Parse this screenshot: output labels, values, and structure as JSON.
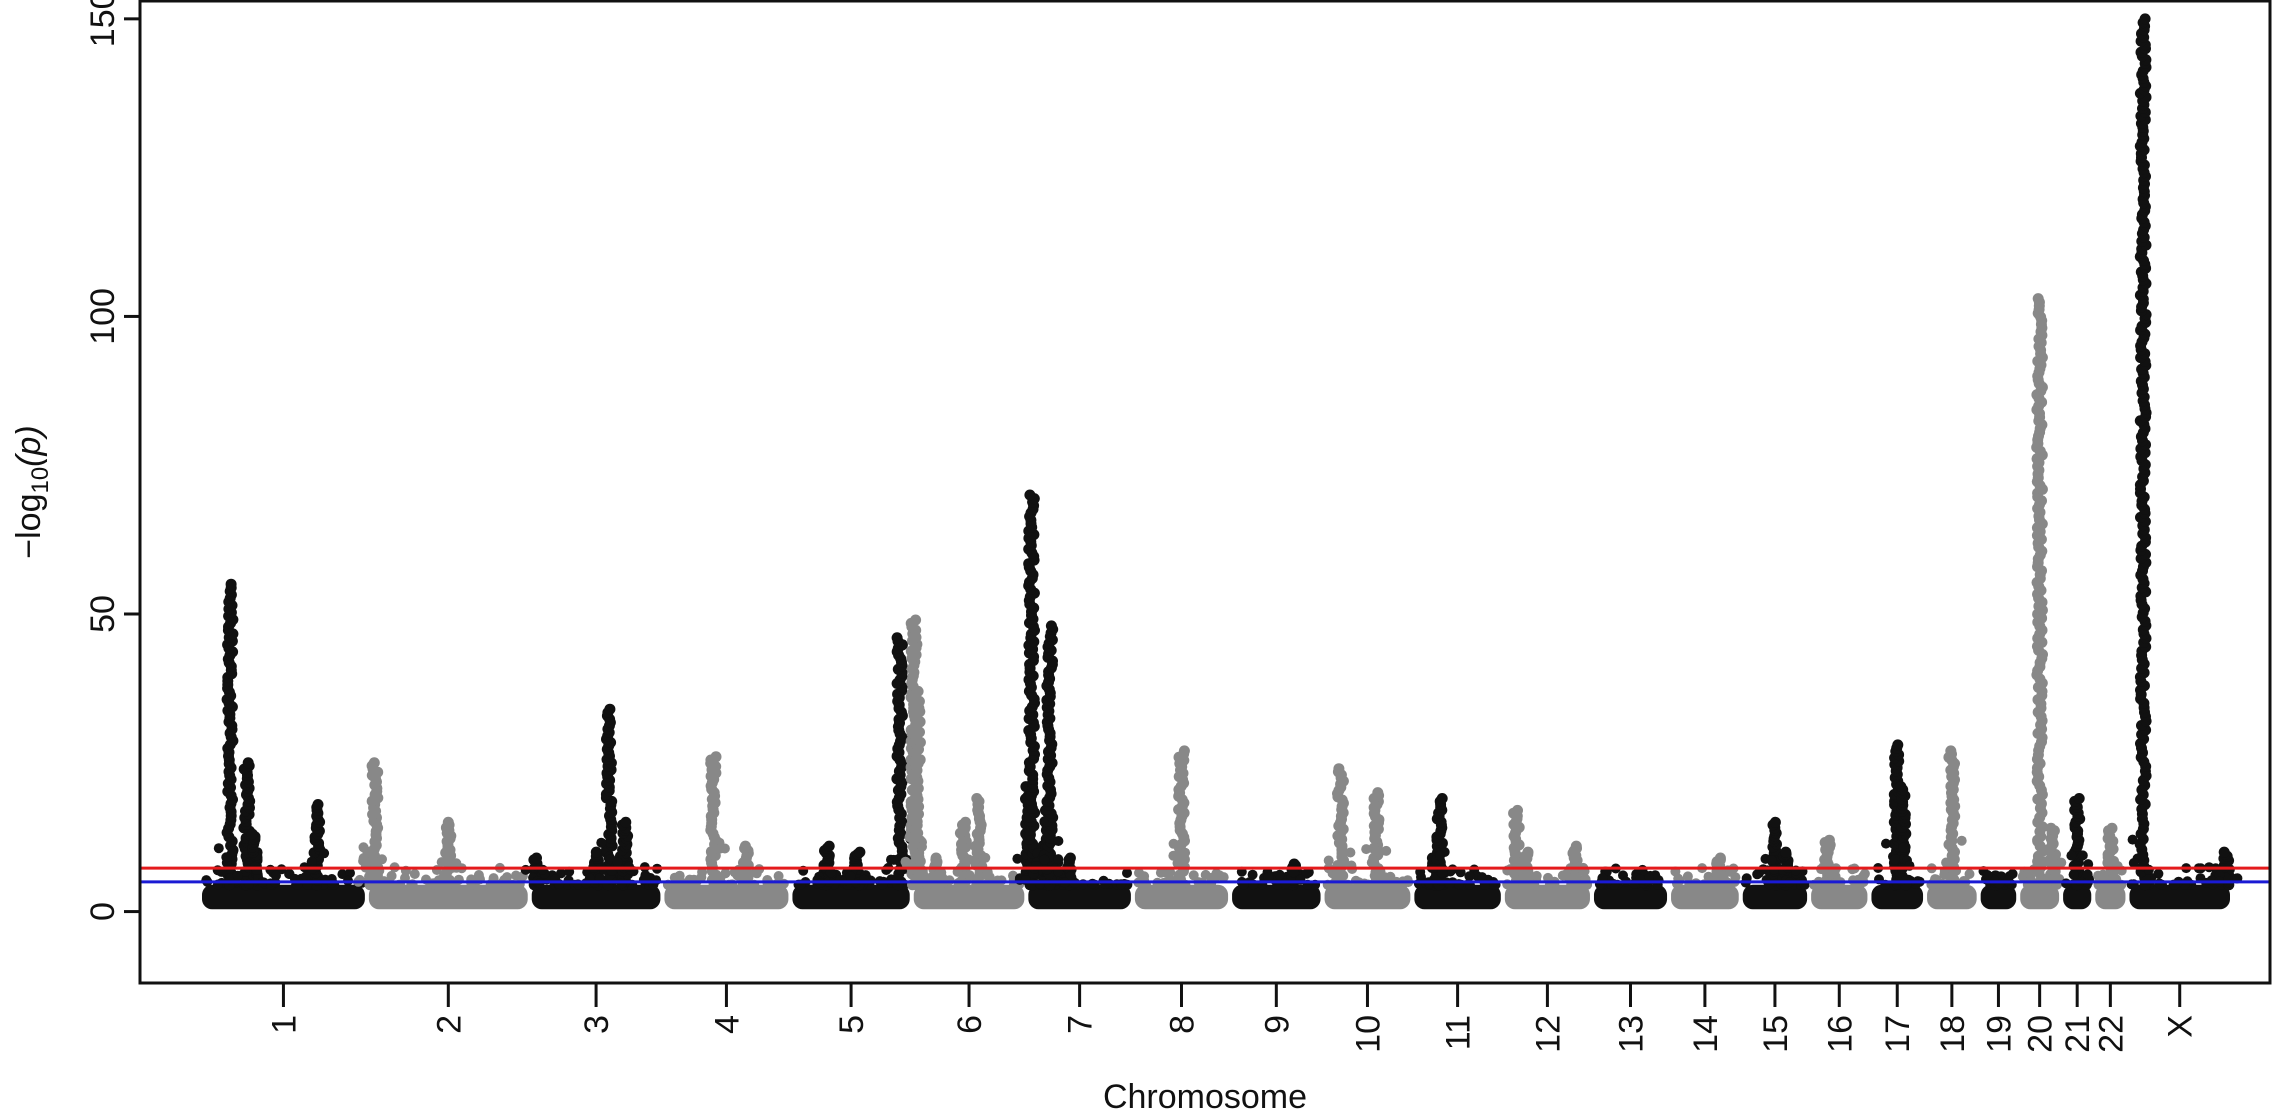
{
  "chart_data": {
    "type": "scatter",
    "title": "",
    "xlabel": "Chromosome",
    "ylabel": "−log10(p)",
    "ylabel_parts": {
      "prefix": "−log",
      "sub": "10",
      "suffix": "(p)"
    },
    "ylim": [
      -12,
      153
    ],
    "yticks": [
      0,
      50,
      100,
      150
    ],
    "grid": false,
    "legend": "none",
    "thresholds": [
      {
        "value": 7.3,
        "color": "#e41a1c"
      },
      {
        "value": 5.0,
        "color": "#1a1ad4"
      }
    ],
    "colors": {
      "odd": "#111111",
      "even": "#888888"
    },
    "xlim": [
      0,
      2893
    ],
    "chromosomes": [
      {
        "label": "1",
        "start": 0,
        "end": 249,
        "base_max": 4.5,
        "peaks": [
          {
            "pos": 0.18,
            "height": 55
          },
          {
            "pos": 0.28,
            "height": 25
          },
          {
            "pos": 0.33,
            "height": 13
          },
          {
            "pos": 0.7,
            "height": 18
          }
        ]
      },
      {
        "label": "2",
        "start": 249,
        "end": 492,
        "base_max": 4.5,
        "peaks": [
          {
            "pos": 0.02,
            "height": 10
          },
          {
            "pos": 0.05,
            "height": 25
          },
          {
            "pos": 0.5,
            "height": 15
          }
        ]
      },
      {
        "label": "3",
        "start": 492,
        "end": 690,
        "base_max": 4.5,
        "peaks": [
          {
            "pos": 0.05,
            "height": 9
          },
          {
            "pos": 0.5,
            "height": 10
          },
          {
            "pos": 0.6,
            "height": 34
          },
          {
            "pos": 0.72,
            "height": 15
          }
        ]
      },
      {
        "label": "4",
        "start": 690,
        "end": 881,
        "base_max": 4.5,
        "peaks": [
          {
            "pos": 0.4,
            "height": 26
          },
          {
            "pos": 0.65,
            "height": 11
          }
        ]
      },
      {
        "label": "5",
        "start": 881,
        "end": 1062,
        "base_max": 4.5,
        "peaks": [
          {
            "pos": 0.3,
            "height": 11
          },
          {
            "pos": 0.55,
            "height": 10
          },
          {
            "pos": 0.9,
            "height": 46
          }
        ]
      },
      {
        "label": "6",
        "start": 1062,
        "end": 1233,
        "base_max": 4.5,
        "peaks": [
          {
            "pos": 0.02,
            "height": 49
          },
          {
            "pos": 0.05,
            "height": 37
          },
          {
            "pos": 0.2,
            "height": 9
          },
          {
            "pos": 0.45,
            "height": 15
          },
          {
            "pos": 0.58,
            "height": 19
          }
        ]
      },
      {
        "label": "7",
        "start": 1233,
        "end": 1392,
        "base_max": 4.5,
        "peaks": [
          {
            "pos": 0.02,
            "height": 21
          },
          {
            "pos": 0.05,
            "height": 70
          },
          {
            "pos": 0.2,
            "height": 17
          },
          {
            "pos": 0.22,
            "height": 48
          },
          {
            "pos": 0.4,
            "height": 9
          }
        ]
      },
      {
        "label": "8",
        "start": 1392,
        "end": 1537,
        "base_max": 4.5,
        "peaks": [
          {
            "pos": 0.5,
            "height": 27
          }
        ]
      },
      {
        "label": "9",
        "start": 1537,
        "end": 1675,
        "base_max": 4.5,
        "peaks": [
          {
            "pos": 0.7,
            "height": 8
          }
        ]
      },
      {
        "label": "10",
        "start": 1675,
        "end": 1809,
        "base_max": 4.5,
        "peaks": [
          {
            "pos": 0.2,
            "height": 24
          },
          {
            "pos": 0.6,
            "height": 20
          }
        ]
      },
      {
        "label": "11",
        "start": 1809,
        "end": 1944,
        "base_max": 4.5,
        "peaks": [
          {
            "pos": 0.25,
            "height": 9
          },
          {
            "pos": 0.3,
            "height": 19
          }
        ]
      },
      {
        "label": "12",
        "start": 1944,
        "end": 2077,
        "base_max": 4.5,
        "peaks": [
          {
            "pos": 0.15,
            "height": 17
          },
          {
            "pos": 0.25,
            "height": 10
          },
          {
            "pos": 0.8,
            "height": 11
          }
        ]
      },
      {
        "label": "13",
        "start": 2077,
        "end": 2192,
        "base_max": 4.5,
        "peaks": [
          {
            "pos": 0.7,
            "height": 6
          }
        ]
      },
      {
        "label": "14",
        "start": 2192,
        "end": 2299,
        "base_max": 4.5,
        "peaks": [
          {
            "pos": 0.7,
            "height": 9
          }
        ]
      },
      {
        "label": "15",
        "start": 2299,
        "end": 2401,
        "base_max": 4.5,
        "peaks": [
          {
            "pos": 0.5,
            "height": 15
          },
          {
            "pos": 0.65,
            "height": 10
          }
        ]
      },
      {
        "label": "16",
        "start": 2401,
        "end": 2491,
        "base_max": 4.5,
        "peaks": [
          {
            "pos": 0.3,
            "height": 12
          }
        ]
      },
      {
        "label": "17",
        "start": 2491,
        "end": 2574,
        "base_max": 4.5,
        "peaks": [
          {
            "pos": 0.5,
            "height": 28
          },
          {
            "pos": 0.6,
            "height": 21
          }
        ]
      },
      {
        "label": "18",
        "start": 2574,
        "end": 2654,
        "base_max": 4.5,
        "peaks": [
          {
            "pos": 0.5,
            "height": 27
          }
        ]
      },
      {
        "label": "19",
        "start": 2654,
        "end": 2713,
        "base_max": 4.5,
        "peaks": [
          {
            "pos": 0.5,
            "height": 6
          }
        ]
      },
      {
        "label": "20",
        "start": 2713,
        "end": 2777,
        "base_max": 4.5,
        "peaks": [
          {
            "pos": 0.5,
            "height": 103
          },
          {
            "pos": 0.8,
            "height": 14
          }
        ]
      },
      {
        "label": "21",
        "start": 2777,
        "end": 2825,
        "base_max": 4.5,
        "peaks": [
          {
            "pos": 0.5,
            "height": 19
          }
        ]
      },
      {
        "label": "22",
        "start": 2825,
        "end": 2876,
        "base_max": 4.5,
        "peaks": [
          {
            "pos": 0.5,
            "height": 14
          }
        ]
      },
      {
        "label": "X",
        "start": 2876,
        "end": 3032,
        "base_max": 4.5,
        "peaks": [
          {
            "pos": 0.15,
            "height": 150
          },
          {
            "pos": 0.95,
            "height": 10
          }
        ]
      }
    ],
    "x_max": 3032
  }
}
